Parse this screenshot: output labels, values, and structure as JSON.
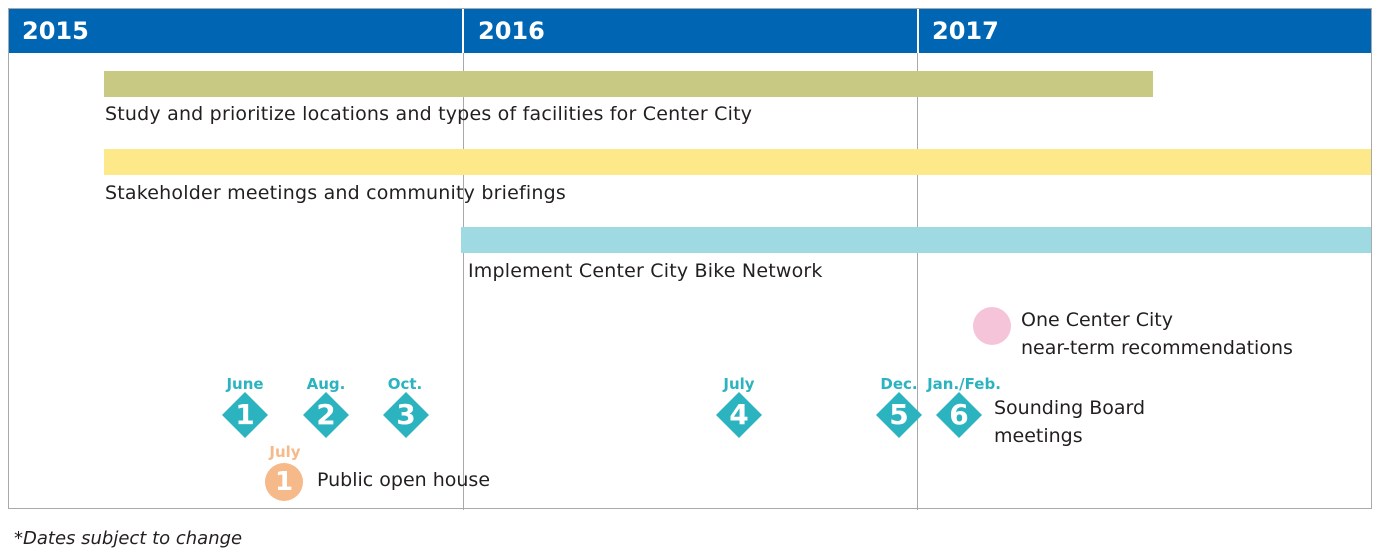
{
  "years": [
    {
      "label": "2015"
    },
    {
      "label": "2016"
    },
    {
      "label": "2017"
    }
  ],
  "colors": {
    "year_band": "#0066b3",
    "bar_study": "#c8ca83",
    "bar_stakeholder": "#fde98a",
    "bar_implement": "#9fd9e1",
    "sounding_board": "#2bb3c0",
    "public_open_house": "#f6b98a",
    "one_center_city": "#f6c4d9"
  },
  "bars": [
    {
      "label": "Study and prioritize locations and types of facilities for Center City"
    },
    {
      "label": "Stakeholder meetings and community briefings"
    },
    {
      "label": "Implement Center City Bike Network"
    }
  ],
  "sounding_board": {
    "label_line1": "Sounding Board",
    "label_line2": "meetings",
    "milestones": [
      {
        "date": "June",
        "number": "1"
      },
      {
        "date": "Aug.",
        "number": "2"
      },
      {
        "date": "Oct.",
        "number": "3"
      },
      {
        "date": "July",
        "number": "4"
      },
      {
        "date": "Dec.",
        "number": "5"
      },
      {
        "date": "Jan./Feb.",
        "number": "6"
      }
    ]
  },
  "public_open_house": {
    "date": "July",
    "number": "1",
    "label": "Public open house"
  },
  "one_center_city": {
    "line1": "One Center City",
    "line2": "near-term recommendations"
  },
  "footnote": "*Dates subject to change"
}
